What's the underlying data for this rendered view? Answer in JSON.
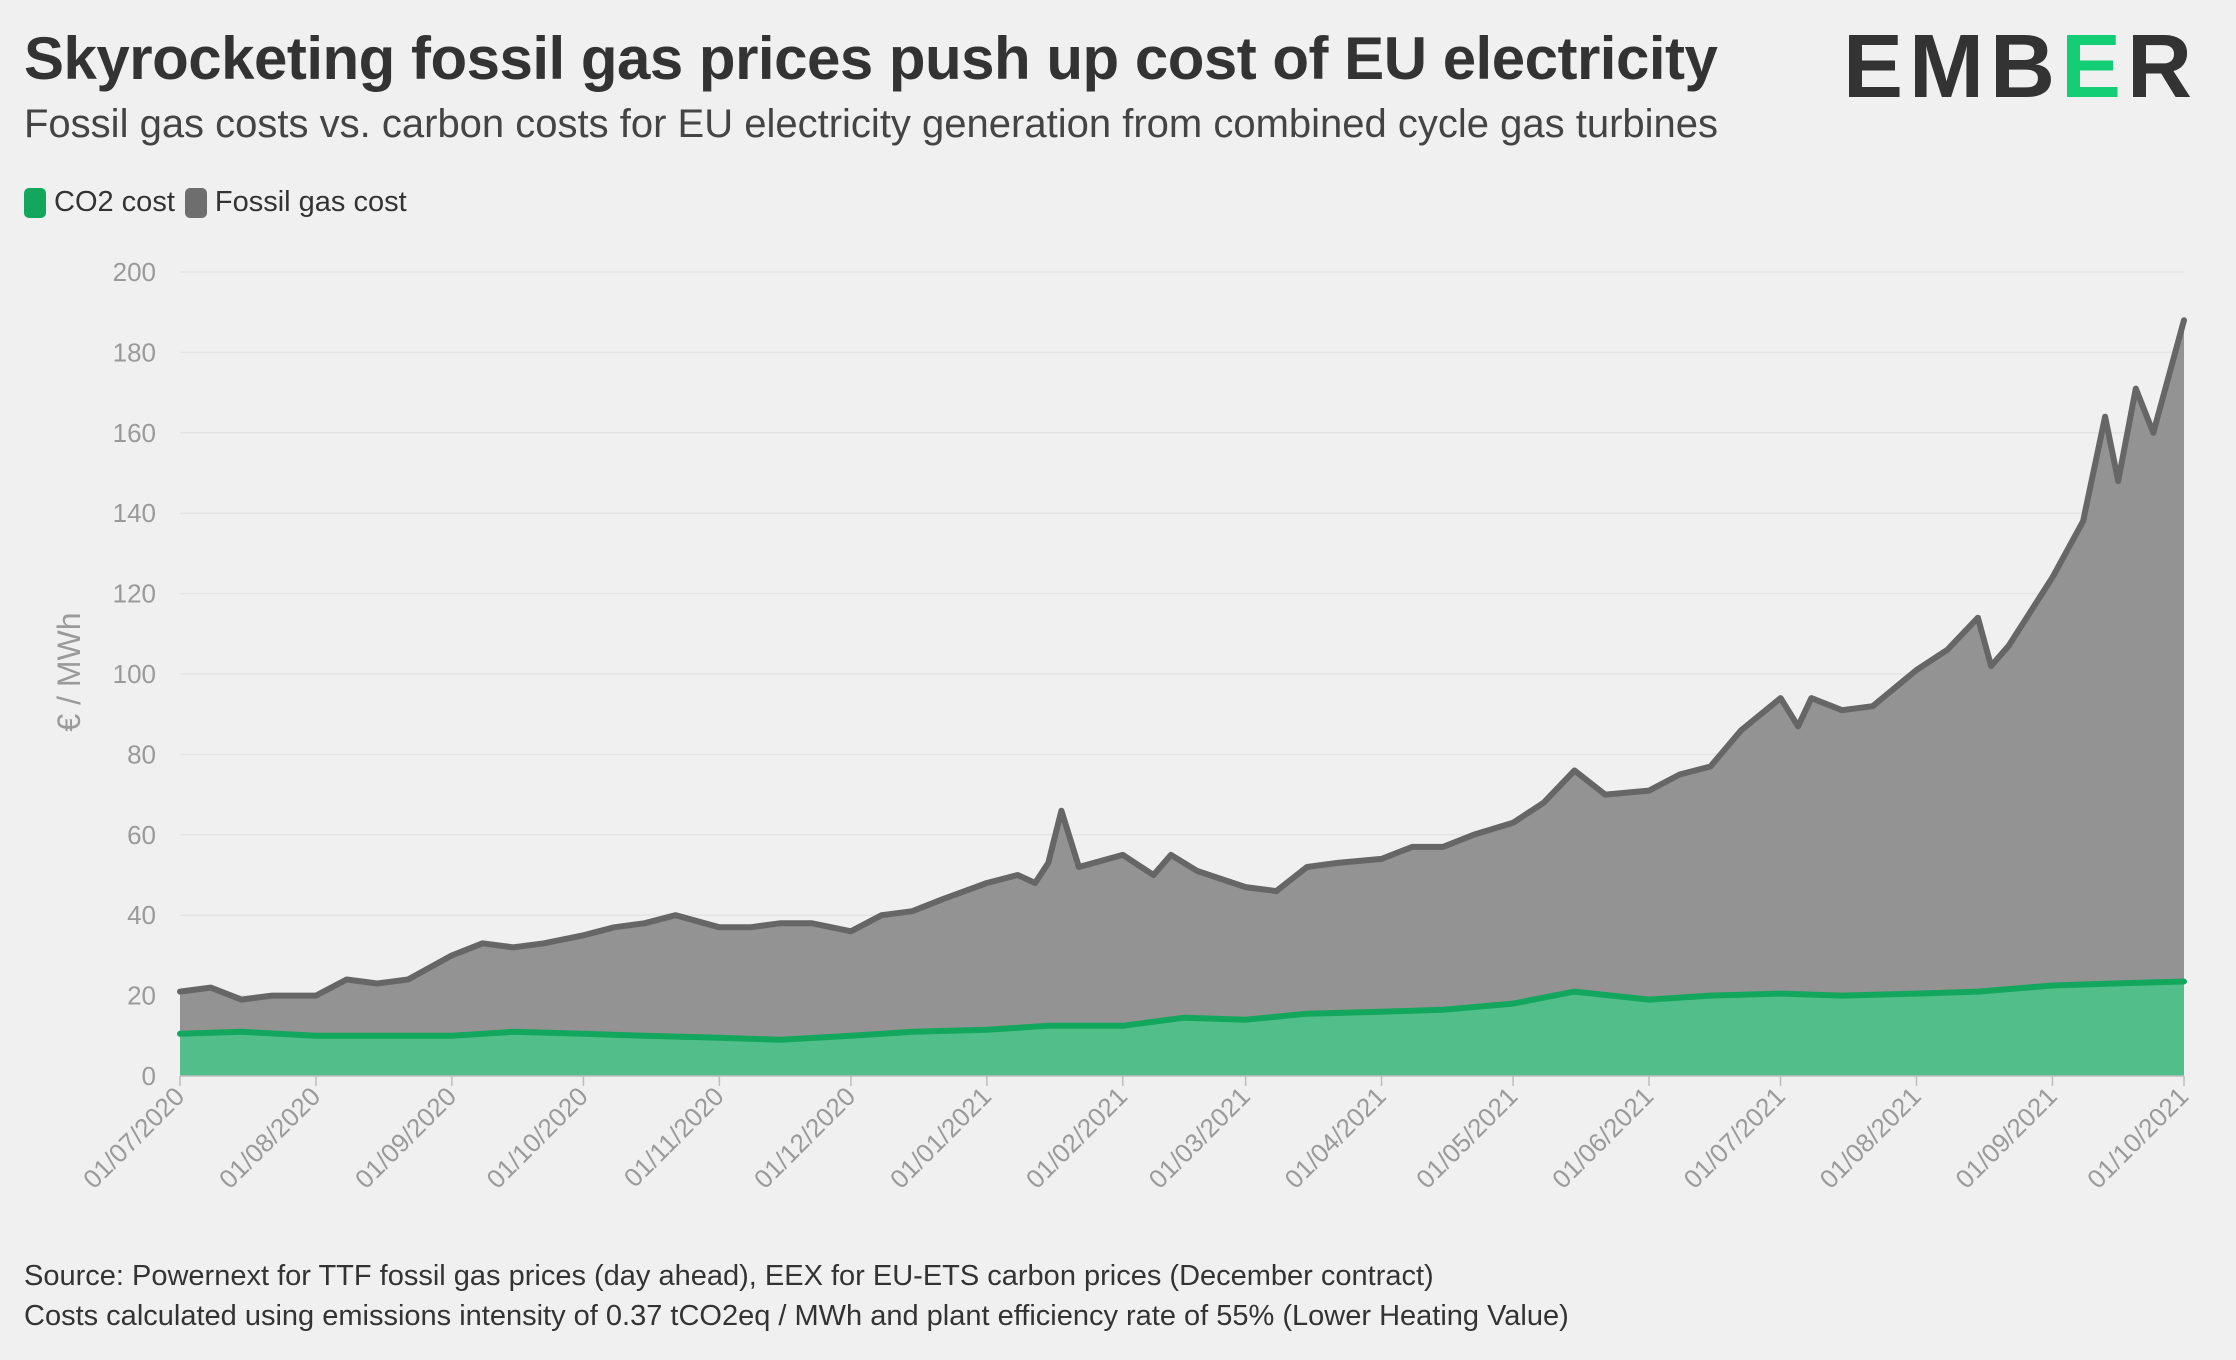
{
  "header": {
    "title": "Skyrocketing fossil gas prices push up cost of EU electricity",
    "subtitle": "Fossil gas costs vs. carbon costs for EU electricity generation from combined cycle gas turbines",
    "logo_main": "EMB",
    "logo_accent": "E",
    "logo_end": "R"
  },
  "legend": [
    {
      "label": "CO2 cost",
      "color": "#13a75d"
    },
    {
      "label": "Fossil gas cost",
      "color": "#6e6e6e"
    }
  ],
  "footer": {
    "line1": "Source: Powernext for TTF fossil gas prices (day ahead), EEX for EU-ETS carbon prices (December contract)",
    "line2": "Costs calculated using emissions intensity of 0.37 tCO2eq / MWh and plant efficiency rate of 55% (Lower Heating Value)"
  },
  "colors": {
    "co2_fill": "#52bf8a",
    "co2_line": "#13a75d",
    "gas_fill": "#939393",
    "gas_line": "#666666",
    "grid": "#e4e4e4",
    "axis_text": "#9a9a9a"
  },
  "chart_data": {
    "type": "area",
    "stacked": true,
    "title": "Skyrocketing fossil gas prices push up cost of EU electricity",
    "ylabel": "€ / MWh",
    "ylim": [
      0,
      200
    ],
    "yticks": [
      0,
      20,
      40,
      60,
      80,
      100,
      120,
      140,
      160,
      180,
      200
    ],
    "xlim": [
      "2020-07-01",
      "2021-10-01"
    ],
    "xtick_labels": [
      "01/07/2020",
      "01/08/2020",
      "01/09/2020",
      "01/10/2020",
      "01/11/2020",
      "01/12/2020",
      "01/01/2021",
      "01/02/2021",
      "01/03/2021",
      "01/04/2021",
      "01/05/2021",
      "01/06/2021",
      "01/07/2021",
      "01/08/2021",
      "01/09/2021",
      "01/10/2021"
    ],
    "xtick_dates": [
      "2020-07-01",
      "2020-08-01",
      "2020-09-01",
      "2020-10-01",
      "2020-11-01",
      "2020-12-01",
      "2021-01-01",
      "2021-02-01",
      "2021-03-01",
      "2021-04-01",
      "2021-05-01",
      "2021-06-01",
      "2021-07-01",
      "2021-08-01",
      "2021-09-01",
      "2021-10-01"
    ],
    "legend_position": "top-left",
    "grid": true,
    "series": [
      {
        "name": "CO2 cost",
        "points": [
          [
            "2020-07-01",
            10.5
          ],
          [
            "2020-07-15",
            11
          ],
          [
            "2020-08-01",
            10
          ],
          [
            "2020-08-15",
            10
          ],
          [
            "2020-09-01",
            10
          ],
          [
            "2020-09-15",
            11
          ],
          [
            "2020-10-01",
            10.5
          ],
          [
            "2020-10-15",
            10
          ],
          [
            "2020-11-01",
            9.5
          ],
          [
            "2020-11-15",
            9
          ],
          [
            "2020-12-01",
            10
          ],
          [
            "2020-12-15",
            11
          ],
          [
            "2021-01-01",
            11.5
          ],
          [
            "2021-01-15",
            12.5
          ],
          [
            "2021-02-01",
            12.5
          ],
          [
            "2021-02-15",
            14.5
          ],
          [
            "2021-03-01",
            14
          ],
          [
            "2021-03-15",
            15.5
          ],
          [
            "2021-04-01",
            16
          ],
          [
            "2021-04-15",
            16.5
          ],
          [
            "2021-05-01",
            18
          ],
          [
            "2021-05-15",
            21
          ],
          [
            "2021-06-01",
            19
          ],
          [
            "2021-06-15",
            20
          ],
          [
            "2021-07-01",
            20.5
          ],
          [
            "2021-07-15",
            20
          ],
          [
            "2021-08-01",
            20.5
          ],
          [
            "2021-08-15",
            21
          ],
          [
            "2021-09-01",
            22.5
          ],
          [
            "2021-09-15",
            23
          ],
          [
            "2021-10-01",
            23.5
          ]
        ]
      },
      {
        "name": "Fossil gas cost",
        "points": [
          [
            "2020-07-01",
            21
          ],
          [
            "2020-07-08",
            22
          ],
          [
            "2020-07-15",
            19
          ],
          [
            "2020-07-22",
            20
          ],
          [
            "2020-08-01",
            20
          ],
          [
            "2020-08-08",
            24
          ],
          [
            "2020-08-15",
            23
          ],
          [
            "2020-08-22",
            24
          ],
          [
            "2020-09-01",
            30
          ],
          [
            "2020-09-08",
            33
          ],
          [
            "2020-09-15",
            32
          ],
          [
            "2020-09-22",
            33
          ],
          [
            "2020-10-01",
            35
          ],
          [
            "2020-10-08",
            37
          ],
          [
            "2020-10-15",
            38
          ],
          [
            "2020-10-22",
            40
          ],
          [
            "2020-11-01",
            37
          ],
          [
            "2020-11-08",
            37
          ],
          [
            "2020-11-15",
            38
          ],
          [
            "2020-11-22",
            38
          ],
          [
            "2020-12-01",
            36
          ],
          [
            "2020-12-08",
            40
          ],
          [
            "2020-12-15",
            41
          ],
          [
            "2020-12-22",
            44
          ],
          [
            "2021-01-01",
            48
          ],
          [
            "2021-01-08",
            50
          ],
          [
            "2021-01-12",
            48
          ],
          [
            "2021-01-15",
            53
          ],
          [
            "2021-01-18",
            66
          ],
          [
            "2021-01-22",
            52
          ],
          [
            "2021-02-01",
            55
          ],
          [
            "2021-02-08",
            50
          ],
          [
            "2021-02-12",
            55
          ],
          [
            "2021-02-18",
            51
          ],
          [
            "2021-03-01",
            47
          ],
          [
            "2021-03-08",
            46
          ],
          [
            "2021-03-15",
            52
          ],
          [
            "2021-03-22",
            53
          ],
          [
            "2021-04-01",
            54
          ],
          [
            "2021-04-08",
            57
          ],
          [
            "2021-04-15",
            57
          ],
          [
            "2021-04-22",
            60
          ],
          [
            "2021-05-01",
            63
          ],
          [
            "2021-05-08",
            68
          ],
          [
            "2021-05-15",
            76
          ],
          [
            "2021-05-22",
            70
          ],
          [
            "2021-06-01",
            71
          ],
          [
            "2021-06-08",
            75
          ],
          [
            "2021-06-15",
            77
          ],
          [
            "2021-06-22",
            86
          ],
          [
            "2021-07-01",
            94
          ],
          [
            "2021-07-05",
            87
          ],
          [
            "2021-07-08",
            94
          ],
          [
            "2021-07-15",
            91
          ],
          [
            "2021-07-22",
            92
          ],
          [
            "2021-08-01",
            101
          ],
          [
            "2021-08-08",
            106
          ],
          [
            "2021-08-15",
            114
          ],
          [
            "2021-08-18",
            102
          ],
          [
            "2021-08-22",
            107
          ],
          [
            "2021-09-01",
            124
          ],
          [
            "2021-09-08",
            138
          ],
          [
            "2021-09-13",
            164
          ],
          [
            "2021-09-16",
            148
          ],
          [
            "2021-09-20",
            171
          ],
          [
            "2021-09-24",
            160
          ],
          [
            "2021-10-01",
            188
          ]
        ]
      }
    ]
  }
}
